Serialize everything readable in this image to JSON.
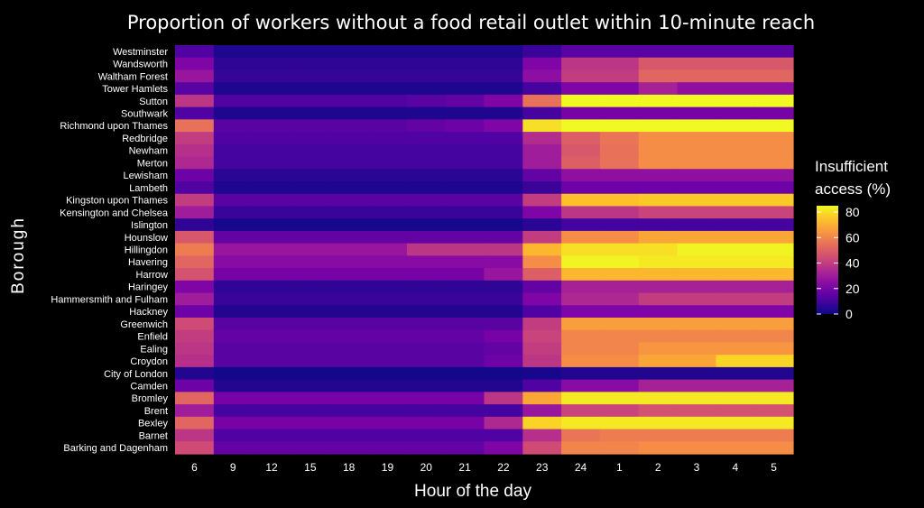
{
  "chart_data": {
    "type": "heatmap",
    "title": "Proportion of workers without a food retail outlet within 10-minute reach",
    "xlabel": "Hour of the day",
    "ylabel": "Borough",
    "x": [
      "6",
      "9",
      "12",
      "15",
      "18",
      "19",
      "20",
      "21",
      "22",
      "23",
      "24",
      "1",
      "2",
      "3",
      "4",
      "5"
    ],
    "y": [
      "Westminster",
      "Wandsworth",
      "Waltham Forest",
      "Tower Hamlets",
      "Sutton",
      "Southwark",
      "Richmond upon Thames",
      "Redbridge",
      "Newham",
      "Merton",
      "Lewisham",
      "Lambeth",
      "Kingston upon Thames",
      "Kensington and Chelsea",
      "Islington",
      "Hounslow",
      "Hillingdon",
      "Havering",
      "Harrow",
      "Haringey",
      "Hammersmith and Fulham",
      "Hackney",
      "Greenwich",
      "Enfield",
      "Ealing",
      "Croydon",
      "City of London",
      "Camden",
      "Bromley",
      "Brent",
      "Bexley",
      "Barnet",
      "Barking and Dagenham"
    ],
    "values": [
      [
        12,
        3,
        3,
        3,
        3,
        3,
        3,
        3,
        3,
        8,
        14,
        14,
        14,
        14,
        14,
        14
      ],
      [
        22,
        6,
        6,
        6,
        6,
        6,
        6,
        6,
        6,
        22,
        38,
        38,
        48,
        48,
        48,
        48
      ],
      [
        28,
        7,
        7,
        7,
        7,
        7,
        7,
        7,
        7,
        25,
        40,
        40,
        52,
        52,
        52,
        52
      ],
      [
        14,
        3,
        3,
        3,
        3,
        3,
        3,
        3,
        3,
        10,
        22,
        22,
        32,
        26,
        26,
        26
      ],
      [
        38,
        12,
        12,
        12,
        12,
        12,
        14,
        16,
        22,
        55,
        85,
        85,
        85,
        85,
        85,
        85
      ],
      [
        12,
        3,
        3,
        3,
        3,
        3,
        3,
        3,
        3,
        10,
        20,
        20,
        20,
        20,
        20,
        20
      ],
      [
        55,
        14,
        14,
        14,
        14,
        14,
        16,
        18,
        22,
        80,
        86,
        86,
        86,
        86,
        86,
        86
      ],
      [
        40,
        12,
        12,
        12,
        12,
        12,
        12,
        12,
        12,
        35,
        50,
        56,
        62,
        62,
        62,
        62
      ],
      [
        36,
        10,
        10,
        10,
        10,
        10,
        10,
        10,
        10,
        30,
        48,
        55,
        62,
        62,
        62,
        62
      ],
      [
        34,
        10,
        10,
        10,
        10,
        10,
        10,
        10,
        10,
        30,
        50,
        55,
        62,
        62,
        62,
        62
      ],
      [
        18,
        5,
        5,
        5,
        5,
        5,
        5,
        5,
        5,
        16,
        26,
        26,
        26,
        26,
        26,
        26
      ],
      [
        12,
        3,
        3,
        3,
        3,
        3,
        3,
        3,
        3,
        8,
        18,
        18,
        18,
        18,
        18,
        18
      ],
      [
        40,
        14,
        14,
        14,
        14,
        14,
        14,
        14,
        14,
        40,
        74,
        74,
        76,
        76,
        76,
        76
      ],
      [
        30,
        8,
        8,
        8,
        8,
        8,
        8,
        8,
        8,
        22,
        38,
        38,
        42,
        42,
        42,
        42
      ],
      [
        6,
        2,
        2,
        2,
        2,
        2,
        2,
        2,
        2,
        5,
        10,
        10,
        10,
        10,
        10,
        10
      ],
      [
        48,
        16,
        16,
        16,
        16,
        16,
        16,
        16,
        16,
        40,
        62,
        62,
        68,
        68,
        68,
        68
      ],
      [
        58,
        28,
        28,
        28,
        28,
        28,
        38,
        38,
        38,
        72,
        80,
        80,
        80,
        84,
        84,
        84
      ],
      [
        52,
        24,
        24,
        24,
        24,
        24,
        24,
        24,
        24,
        62,
        84,
        84,
        82,
        82,
        82,
        82
      ],
      [
        46,
        20,
        20,
        20,
        20,
        20,
        20,
        20,
        28,
        50,
        72,
        72,
        72,
        72,
        72,
        72
      ],
      [
        22,
        6,
        6,
        6,
        6,
        6,
        6,
        6,
        6,
        16,
        32,
        32,
        32,
        32,
        32,
        32
      ],
      [
        30,
        8,
        8,
        8,
        8,
        8,
        8,
        8,
        8,
        22,
        34,
        34,
        40,
        40,
        40,
        40
      ],
      [
        18,
        4,
        4,
        4,
        4,
        4,
        4,
        4,
        4,
        12,
        22,
        22,
        22,
        22,
        22,
        22
      ],
      [
        44,
        14,
        14,
        14,
        14,
        14,
        14,
        14,
        14,
        40,
        66,
        66,
        66,
        66,
        66,
        66
      ],
      [
        40,
        16,
        16,
        16,
        16,
        16,
        16,
        16,
        20,
        42,
        60,
        60,
        60,
        60,
        60,
        60
      ],
      [
        38,
        14,
        14,
        14,
        14,
        14,
        14,
        14,
        16,
        40,
        60,
        60,
        64,
        64,
        64,
        64
      ],
      [
        36,
        14,
        14,
        14,
        14,
        14,
        14,
        14,
        18,
        38,
        62,
        62,
        68,
        68,
        78,
        78
      ],
      [
        4,
        1,
        1,
        1,
        1,
        1,
        1,
        1,
        1,
        2,
        4,
        4,
        4,
        4,
        4,
        4
      ],
      [
        18,
        4,
        4,
        4,
        4,
        4,
        4,
        4,
        4,
        12,
        24,
        24,
        32,
        32,
        32,
        32
      ],
      [
        52,
        20,
        20,
        20,
        20,
        20,
        20,
        20,
        38,
        68,
        82,
        82,
        82,
        82,
        82,
        82
      ],
      [
        30,
        10,
        10,
        10,
        10,
        10,
        10,
        10,
        10,
        28,
        42,
        42,
        46,
        46,
        46,
        46
      ],
      [
        52,
        20,
        20,
        20,
        20,
        20,
        20,
        20,
        34,
        78,
        82,
        82,
        82,
        82,
        82,
        82
      ],
      [
        38,
        12,
        12,
        12,
        12,
        12,
        12,
        12,
        12,
        36,
        56,
        58,
        58,
        58,
        58,
        58
      ],
      [
        44,
        16,
        16,
        16,
        16,
        16,
        16,
        16,
        22,
        44,
        60,
        60,
        62,
        62,
        62,
        62
      ]
    ],
    "colorbar": {
      "title_line1": "Insufficient",
      "title_line2": "access (%)",
      "ticks": [
        0,
        20,
        40,
        60,
        80
      ],
      "range": [
        0,
        85
      ]
    }
  }
}
